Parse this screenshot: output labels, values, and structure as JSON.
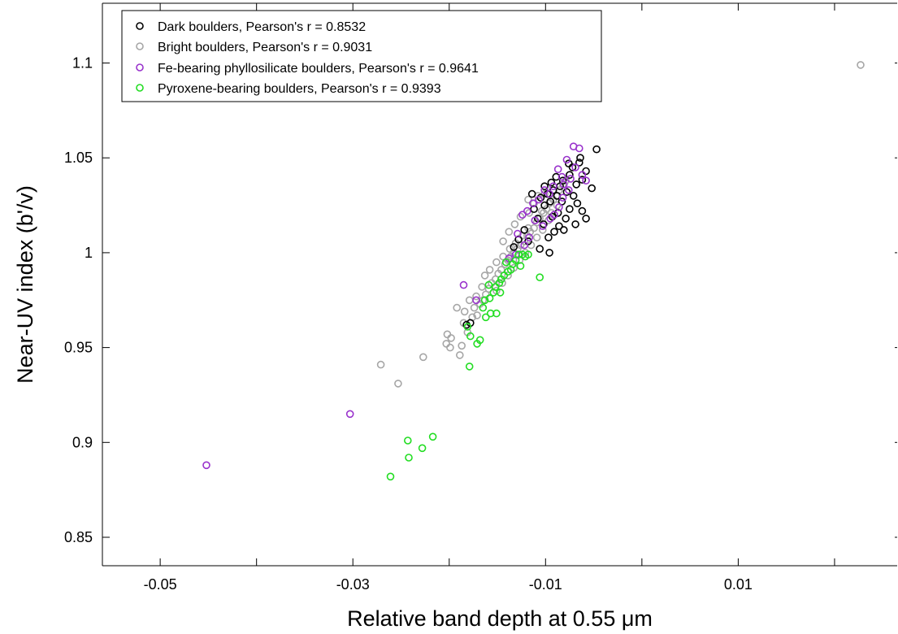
{
  "chart_data": {
    "type": "scatter",
    "xlabel": "Relative band depth at 0.55 μm",
    "ylabel": "Near-UV index (b'/v)",
    "xlim": [
      -0.056,
      0.0265
    ],
    "ylim": [
      0.835,
      1.1315
    ],
    "xticks": [
      -0.05,
      -0.04,
      -0.03,
      -0.02,
      -0.01,
      0.0,
      0.01,
      0.02
    ],
    "xtick_labels": [
      "-0.05",
      "",
      "-0.03",
      "",
      "-0.01",
      "",
      "0.01",
      ""
    ],
    "yticks": [
      0.85,
      0.9,
      0.95,
      1.0,
      1.05,
      1.1
    ],
    "ytick_labels": [
      "0.85",
      "0.9",
      "0.95",
      "1",
      "1.05",
      "1.1"
    ],
    "legend_location": "top-left",
    "marker": "open circle",
    "series": [
      {
        "name": "Dark boulders, Pearson's r = 0.8532",
        "color": "#000000",
        "points": [
          [
            -0.0047,
            1.0545
          ],
          [
            -0.0065,
            1.0475
          ],
          [
            -0.0058,
            1.043
          ],
          [
            -0.0052,
            1.034
          ],
          [
            -0.0062,
            1.0385
          ],
          [
            -0.0072,
            1.045
          ],
          [
            -0.0068,
            1.036
          ],
          [
            -0.0075,
            1.041
          ],
          [
            -0.0082,
            1.038
          ],
          [
            -0.0078,
            1.032
          ],
          [
            -0.0085,
            1.035
          ],
          [
            -0.0088,
            1.03
          ],
          [
            -0.0092,
            1.033
          ],
          [
            -0.0095,
            1.027
          ],
          [
            -0.0098,
            1.031
          ],
          [
            -0.0101,
            1.025
          ],
          [
            -0.0105,
            1.029
          ],
          [
            -0.0083,
            1.027
          ],
          [
            -0.0071,
            1.03
          ],
          [
            -0.0067,
            1.026
          ],
          [
            -0.0075,
            1.023
          ],
          [
            -0.0079,
            1.018
          ],
          [
            -0.0087,
            1.021
          ],
          [
            -0.0093,
            1.019
          ],
          [
            -0.0086,
            1.014
          ],
          [
            -0.0091,
            1.011
          ],
          [
            -0.0097,
            1.008
          ],
          [
            -0.0102,
            1.015
          ],
          [
            -0.0108,
            1.018
          ],
          [
            -0.0112,
            1.023
          ],
          [
            -0.0118,
            1.006
          ],
          [
            -0.0106,
            1.002
          ],
          [
            -0.0096,
            1.0
          ],
          [
            -0.0122,
            1.012
          ],
          [
            -0.0128,
            1.007
          ],
          [
            -0.0133,
            1.003
          ],
          [
            -0.0114,
            1.031
          ],
          [
            -0.0101,
            1.035
          ],
          [
            -0.0094,
            1.037
          ],
          [
            -0.0089,
            1.04
          ],
          [
            -0.0062,
            1.022
          ],
          [
            -0.0058,
            1.018
          ],
          [
            -0.0069,
            1.015
          ],
          [
            -0.0081,
            1.012
          ],
          [
            -0.0178,
            0.963
          ],
          [
            -0.0182,
            0.962
          ],
          [
            -0.0064,
            1.05
          ],
          [
            -0.0076,
            1.047
          ]
        ]
      },
      {
        "name": "Bright boulders, Pearson's r = 0.9031",
        "color": "#a6a6a6",
        "points": [
          [
            0.0227,
            1.099
          ],
          [
            -0.0271,
            0.941
          ],
          [
            -0.0253,
            0.931
          ],
          [
            -0.0227,
            0.945
          ],
          [
            -0.0203,
            0.952
          ],
          [
            -0.0199,
            0.95
          ],
          [
            -0.0202,
            0.957
          ],
          [
            -0.0198,
            0.955
          ],
          [
            -0.0189,
            0.946
          ],
          [
            -0.0187,
            0.951
          ],
          [
            -0.0181,
            0.958
          ],
          [
            -0.0185,
            0.963
          ],
          [
            -0.0176,
            0.966
          ],
          [
            -0.0171,
            0.967
          ],
          [
            -0.0174,
            0.971
          ],
          [
            -0.0168,
            0.973
          ],
          [
            -0.0165,
            0.975
          ],
          [
            -0.0162,
            0.978
          ],
          [
            -0.0159,
            0.981
          ],
          [
            -0.0156,
            0.984
          ],
          [
            -0.0152,
            0.986
          ],
          [
            -0.0149,
            0.989
          ],
          [
            -0.0146,
            0.991
          ],
          [
            -0.0142,
            0.994
          ],
          [
            -0.0139,
            0.996
          ],
          [
            -0.0136,
            0.998
          ],
          [
            -0.0133,
            1.0
          ],
          [
            -0.0129,
            1.002
          ],
          [
            -0.0126,
            1.004
          ],
          [
            -0.0122,
            1.006
          ],
          [
            -0.0119,
            1.009
          ],
          [
            -0.0116,
            1.011
          ],
          [
            -0.0112,
            1.013
          ],
          [
            -0.0109,
            1.016
          ],
          [
            -0.0106,
            1.018
          ],
          [
            -0.0102,
            1.021
          ],
          [
            -0.0099,
            1.023
          ],
          [
            -0.0096,
            1.026
          ],
          [
            -0.0092,
            1.028
          ],
          [
            -0.0089,
            1.03
          ],
          [
            -0.0086,
            1.033
          ],
          [
            -0.0082,
            1.036
          ],
          [
            -0.0079,
            1.038
          ],
          [
            -0.0158,
            0.991
          ],
          [
            -0.0151,
            0.995
          ],
          [
            -0.0144,
            0.998
          ],
          [
            -0.0137,
            1.002
          ],
          [
            -0.0131,
            1.005
          ],
          [
            -0.0124,
            1.009
          ],
          [
            -0.0118,
            1.013
          ],
          [
            -0.0111,
            1.017
          ],
          [
            -0.0104,
            1.022
          ],
          [
            -0.0097,
            1.017
          ],
          [
            -0.0103,
            1.012
          ],
          [
            -0.0109,
            1.008
          ],
          [
            -0.0115,
            1.004
          ],
          [
            -0.0121,
            1.0
          ],
          [
            -0.0127,
            0.996
          ],
          [
            -0.0133,
            0.992
          ],
          [
            -0.0139,
            0.988
          ],
          [
            -0.0145,
            0.984
          ],
          [
            -0.0151,
            0.98
          ],
          [
            -0.0117,
            1.021
          ],
          [
            -0.0112,
            1.026
          ],
          [
            -0.0108,
            1.03
          ],
          [
            -0.0126,
            1.019
          ],
          [
            -0.0132,
            1.015
          ],
          [
            -0.0138,
            1.011
          ],
          [
            -0.0144,
            1.006
          ],
          [
            -0.0118,
            1.028
          ],
          [
            -0.0101,
            1.031
          ],
          [
            -0.0094,
            1.021
          ],
          [
            -0.0088,
            1.025
          ],
          [
            -0.0163,
            0.988
          ],
          [
            -0.0166,
            0.982
          ],
          [
            -0.0172,
            0.977
          ],
          [
            -0.0179,
            0.975
          ],
          [
            -0.0184,
            0.969
          ],
          [
            -0.0192,
            0.971
          ]
        ]
      },
      {
        "name": "Fe-bearing phyllosilicate boulders, Pearson's r = 0.9641",
        "color": "#9932cc",
        "points": [
          [
            -0.0452,
            0.888
          ],
          [
            -0.0303,
            0.915
          ],
          [
            -0.0185,
            0.983
          ],
          [
            -0.0172,
            0.975
          ],
          [
            -0.0065,
            1.055
          ],
          [
            -0.0071,
            1.056
          ],
          [
            -0.0078,
            1.049
          ],
          [
            -0.0069,
            1.045
          ],
          [
            -0.0062,
            1.041
          ],
          [
            -0.0074,
            1.039
          ],
          [
            -0.0083,
            1.04
          ],
          [
            -0.0087,
            1.044
          ],
          [
            -0.0081,
            1.036
          ],
          [
            -0.0092,
            1.035
          ],
          [
            -0.0096,
            1.031
          ],
          [
            -0.0101,
            1.033
          ],
          [
            -0.0107,
            1.028
          ],
          [
            -0.0113,
            1.026
          ],
          [
            -0.0119,
            1.022
          ],
          [
            -0.0111,
            1.017
          ],
          [
            -0.0103,
            1.014
          ],
          [
            -0.0124,
            1.02
          ],
          [
            -0.0129,
            1.01
          ],
          [
            -0.0117,
            1.008
          ],
          [
            -0.0122,
            1.004
          ],
          [
            -0.0131,
            0.999
          ],
          [
            -0.0138,
            0.997
          ],
          [
            -0.0086,
            1.024
          ],
          [
            -0.0091,
            1.02
          ],
          [
            -0.0095,
            1.018
          ],
          [
            -0.0082,
            1.029
          ],
          [
            -0.0076,
            1.033
          ],
          [
            -0.0058,
            1.038
          ]
        ]
      },
      {
        "name": "Pyroxene-bearing boulders, Pearson's r = 0.9393",
        "color": "#22dd22",
        "points": [
          [
            -0.0261,
            0.882
          ],
          [
            -0.0242,
            0.892
          ],
          [
            -0.0243,
            0.901
          ],
          [
            -0.0228,
            0.897
          ],
          [
            -0.0217,
            0.903
          ],
          [
            -0.0179,
            0.94
          ],
          [
            -0.0178,
            0.956
          ],
          [
            -0.0181,
            0.961
          ],
          [
            -0.0171,
            0.952
          ],
          [
            -0.0168,
            0.954
          ],
          [
            -0.0162,
            0.966
          ],
          [
            -0.0157,
            0.968
          ],
          [
            -0.0151,
            0.968
          ],
          [
            -0.0165,
            0.971
          ],
          [
            -0.0163,
            0.975
          ],
          [
            -0.0158,
            0.976
          ],
          [
            -0.0154,
            0.979
          ],
          [
            -0.0152,
            0.982
          ],
          [
            -0.0148,
            0.984
          ],
          [
            -0.0146,
            0.986
          ],
          [
            -0.0143,
            0.988
          ],
          [
            -0.0139,
            0.99
          ],
          [
            -0.0136,
            0.991
          ],
          [
            -0.0134,
            0.994
          ],
          [
            -0.0131,
            0.996
          ],
          [
            -0.0128,
            0.999
          ],
          [
            -0.0124,
            0.999
          ],
          [
            -0.0121,
            0.998
          ],
          [
            -0.0126,
            0.993
          ],
          [
            -0.0118,
            0.999
          ],
          [
            -0.0106,
            0.987
          ],
          [
            -0.0147,
            0.979
          ],
          [
            -0.0159,
            0.983
          ],
          [
            -0.0141,
            0.995
          ]
        ]
      }
    ]
  }
}
